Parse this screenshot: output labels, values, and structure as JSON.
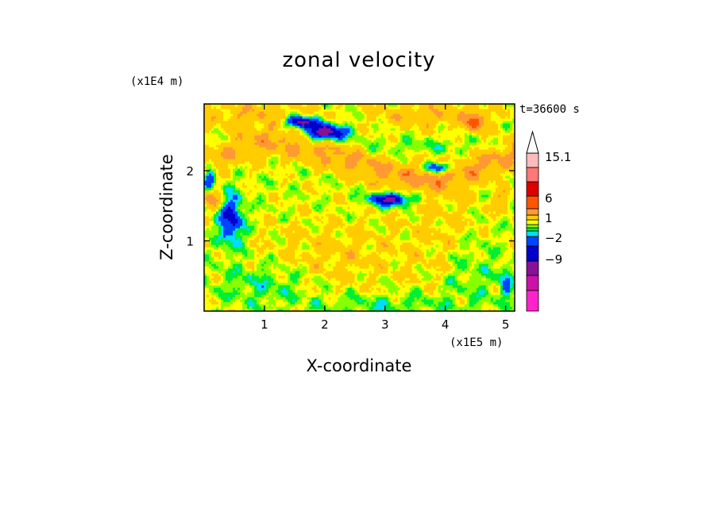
{
  "chart_data": {
    "type": "heatmap",
    "title": "zonal velocity",
    "xlabel": "X-coordinate",
    "ylabel": "Z-coordinate",
    "x_unit": "(x1E5 m)",
    "y_unit": "(x1E4 m)",
    "time_label": "t=36600 s",
    "xlim": [
      0,
      5.15
    ],
    "ylim": [
      0,
      2.95
    ],
    "x_ticks": [
      1,
      2,
      3,
      4,
      5
    ],
    "y_ticks": [
      1,
      2
    ],
    "colorbar": {
      "levels": [
        -15,
        -12,
        -9,
        -6,
        -4,
        -2,
        -1,
        0,
        1,
        2,
        4,
        6,
        9,
        12,
        15.1
      ],
      "labeled_ticks": [
        "15.1",
        "6",
        "1",
        "-2",
        "-9"
      ],
      "colors": [
        "#ff22cc",
        "#cc11aa",
        "#881199",
        "#0000cc",
        "#0044ff",
        "#00ddff",
        "#00ee33",
        "#88ff00",
        "#ffff00",
        "#ffcc00",
        "#ff9933",
        "#ff5500",
        "#dd0000",
        "#ff7777",
        "#ffbbbb"
      ],
      "extend_max": true,
      "extend_max_color": "#ffffff"
    },
    "field_note": "Contour-filled field; dominant values between -2 and 6, with negative cores near z=2.4 around x=2.0 and z=1.6 around x=3.1, and positive bands near z=2.1-2.3."
  }
}
